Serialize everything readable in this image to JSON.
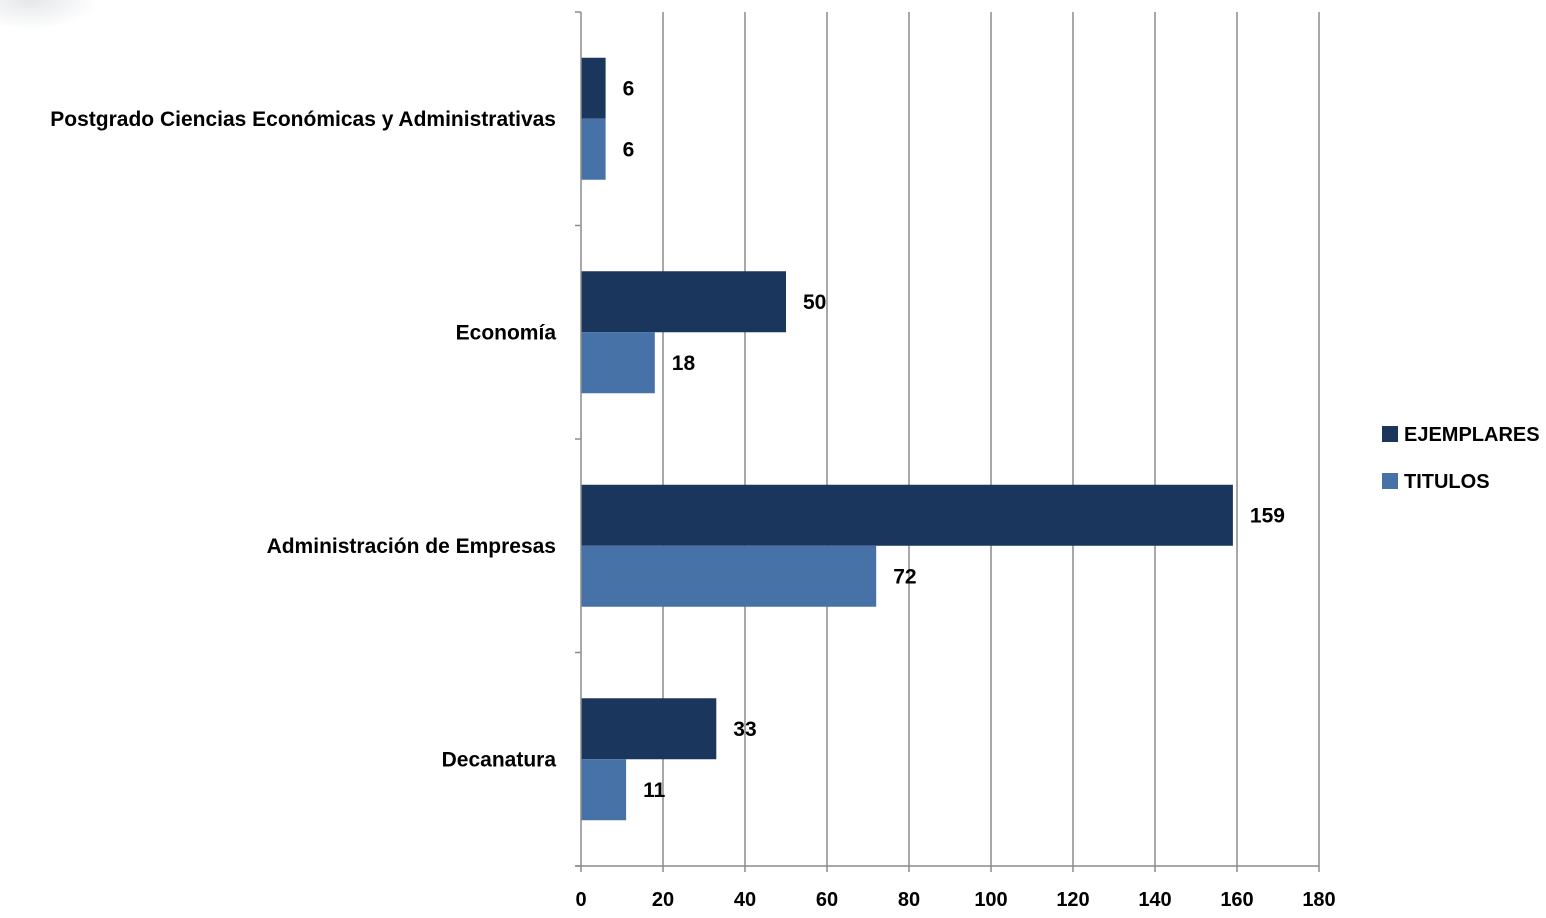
{
  "chart_data": {
    "type": "bar",
    "orientation": "horizontal",
    "categories": [
      "Decanatura",
      "Administración de Empresas",
      "Economía",
      "Postgrado Ciencias Económicas y Administrativas"
    ],
    "series": [
      {
        "name": "EJEMPLARES",
        "values": [
          33,
          159,
          50,
          6
        ],
        "color": "#1b365d"
      },
      {
        "name": "TITULOS",
        "values": [
          11,
          72,
          18,
          6
        ],
        "color": "#4672a8"
      }
    ],
    "xlim": [
      0,
      180
    ],
    "x_ticks": [
      "0",
      "20",
      "40",
      "60",
      "80",
      "100",
      "120",
      "140",
      "160",
      "180"
    ],
    "grid": "vertical",
    "legend_position": "right",
    "data_labels": true
  }
}
